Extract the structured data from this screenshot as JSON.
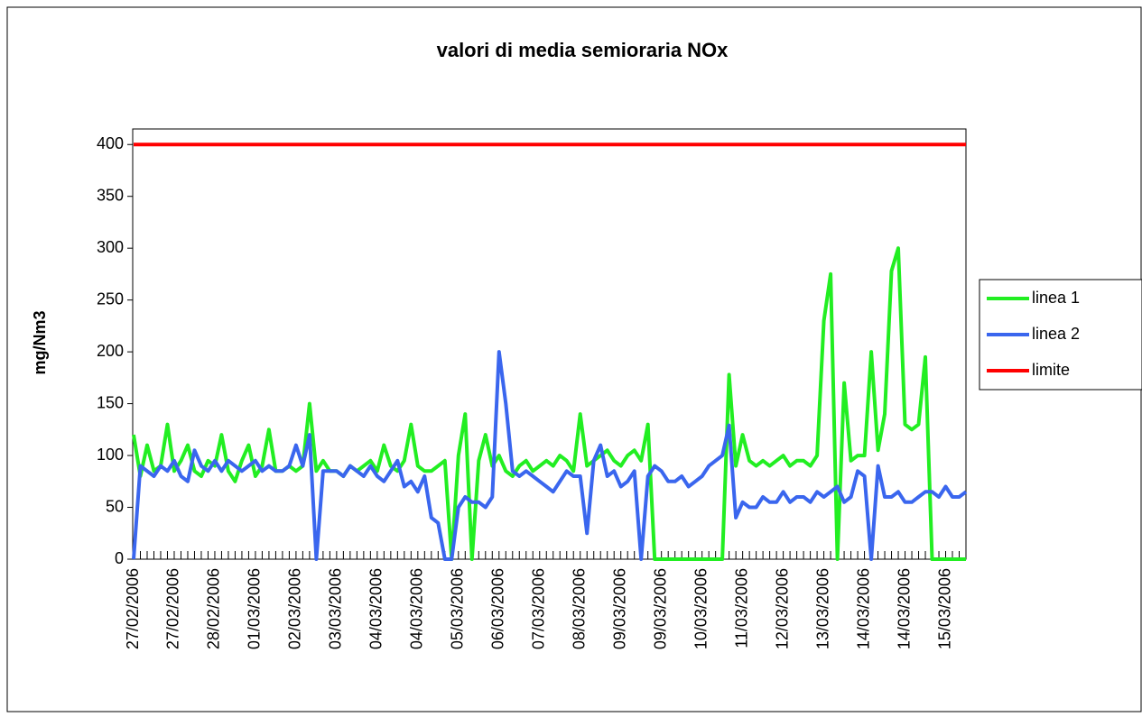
{
  "chart_data": {
    "type": "line",
    "title": "valori di media semioraria NOx",
    "y_label": "mg/Nm3",
    "categories": [
      "27/02/2006",
      null,
      null,
      null,
      null,
      null,
      "27/02/2006",
      null,
      null,
      null,
      null,
      null,
      "28/02/2006",
      null,
      null,
      null,
      null,
      null,
      "01/03/2006",
      null,
      null,
      null,
      null,
      null,
      "02/03/2006",
      null,
      null,
      null,
      null,
      null,
      "03/03/2006",
      null,
      null,
      null,
      null,
      null,
      "04/03/2006",
      null,
      null,
      null,
      null,
      null,
      "04/03/2006",
      null,
      null,
      null,
      null,
      null,
      "05/03/2006",
      null,
      null,
      null,
      null,
      null,
      "06/03/2006",
      null,
      null,
      null,
      null,
      null,
      "07/03/2006",
      null,
      null,
      null,
      null,
      null,
      "08/03/2006",
      null,
      null,
      null,
      null,
      null,
      "09/03/2006",
      null,
      null,
      null,
      null,
      null,
      "09/03/2006",
      null,
      null,
      null,
      null,
      null,
      "10/03/2006",
      null,
      null,
      null,
      null,
      null,
      "11/03/2006",
      null,
      null,
      null,
      null,
      null,
      "12/03/2006",
      null,
      null,
      null,
      null,
      null,
      "13/03/2006",
      null,
      null,
      null,
      null,
      null,
      "14/03/2006",
      null,
      null,
      null,
      null,
      null,
      "14/03/2006",
      null,
      null,
      null,
      null,
      null,
      "15/03/2006",
      null,
      null,
      null
    ],
    "series": [
      {
        "name": "linea 1",
        "color": "#22ee22",
        "values": [
          120,
          80,
          110,
          85,
          90,
          130,
          85,
          95,
          110,
          85,
          80,
          95,
          90,
          120,
          85,
          75,
          95,
          110,
          80,
          90,
          125,
          85,
          85,
          90,
          85,
          90,
          150,
          85,
          95,
          85,
          85,
          80,
          90,
          85,
          90,
          95,
          85,
          110,
          90,
          85,
          95,
          130,
          90,
          85,
          85,
          90,
          95,
          0,
          100,
          140,
          0,
          95,
          120,
          90,
          100,
          85,
          80,
          90,
          95,
          85,
          90,
          95,
          90,
          100,
          95,
          85,
          140,
          90,
          95,
          100,
          105,
          95,
          90,
          100,
          105,
          95,
          130,
          0,
          0,
          0,
          0,
          0,
          0,
          0,
          0,
          0,
          0,
          0,
          178,
          90,
          120,
          95,
          90,
          95,
          90,
          95,
          100,
          90,
          95,
          95,
          90,
          100,
          230,
          275,
          0,
          170,
          95,
          100,
          100,
          200,
          105,
          140,
          278,
          300,
          130,
          125,
          130,
          195,
          0,
          0,
          0,
          0,
          0,
          0
        ]
      },
      {
        "name": "linea 2",
        "color": "#3a66ee",
        "values": [
          0,
          90,
          85,
          80,
          90,
          85,
          95,
          80,
          75,
          105,
          90,
          85,
          95,
          85,
          95,
          90,
          85,
          90,
          95,
          85,
          90,
          85,
          85,
          90,
          110,
          90,
          120,
          0,
          85,
          85,
          85,
          80,
          90,
          85,
          80,
          90,
          80,
          75,
          85,
          95,
          70,
          75,
          65,
          80,
          40,
          35,
          0,
          0,
          50,
          60,
          55,
          55,
          50,
          60,
          200,
          150,
          85,
          80,
          85,
          80,
          75,
          70,
          65,
          75,
          85,
          80,
          80,
          25,
          95,
          110,
          80,
          85,
          70,
          75,
          85,
          0,
          80,
          90,
          85,
          75,
          75,
          80,
          70,
          75,
          80,
          90,
          95,
          100,
          129,
          40,
          55,
          50,
          50,
          60,
          55,
          55,
          65,
          55,
          60,
          60,
          55,
          65,
          60,
          65,
          70,
          55,
          60,
          85,
          80,
          0,
          90,
          60,
          60,
          65,
          55,
          55,
          60,
          65,
          65,
          60,
          70,
          60,
          60,
          65
        ]
      },
      {
        "name": "limite",
        "color": "#ff0000",
        "values": [
          400,
          400,
          400,
          400,
          400,
          400,
          400,
          400,
          400,
          400,
          400,
          400,
          400,
          400,
          400,
          400,
          400,
          400,
          400,
          400,
          400,
          400,
          400,
          400,
          400,
          400,
          400,
          400,
          400,
          400,
          400,
          400,
          400,
          400,
          400,
          400,
          400,
          400,
          400,
          400,
          400,
          400,
          400,
          400,
          400,
          400,
          400,
          400,
          400,
          400,
          400,
          400,
          400,
          400,
          400,
          400,
          400,
          400,
          400,
          400,
          400,
          400,
          400,
          400,
          400,
          400,
          400,
          400,
          400,
          400,
          400,
          400,
          400,
          400,
          400,
          400,
          400,
          400,
          400,
          400,
          400,
          400,
          400,
          400,
          400,
          400,
          400,
          400,
          400,
          400,
          400,
          400,
          400,
          400,
          400,
          400,
          400,
          400,
          400,
          400,
          400,
          400,
          400,
          400,
          400,
          400,
          400,
          400,
          400,
          400,
          400,
          400,
          400,
          400,
          400,
          400,
          400,
          400,
          400,
          400,
          400,
          400,
          400,
          400
        ]
      }
    ],
    "ylim": [
      0,
      415
    ],
    "yticks": [
      0,
      50,
      100,
      150,
      200,
      250,
      300,
      350,
      400
    ],
    "legend": "right"
  }
}
